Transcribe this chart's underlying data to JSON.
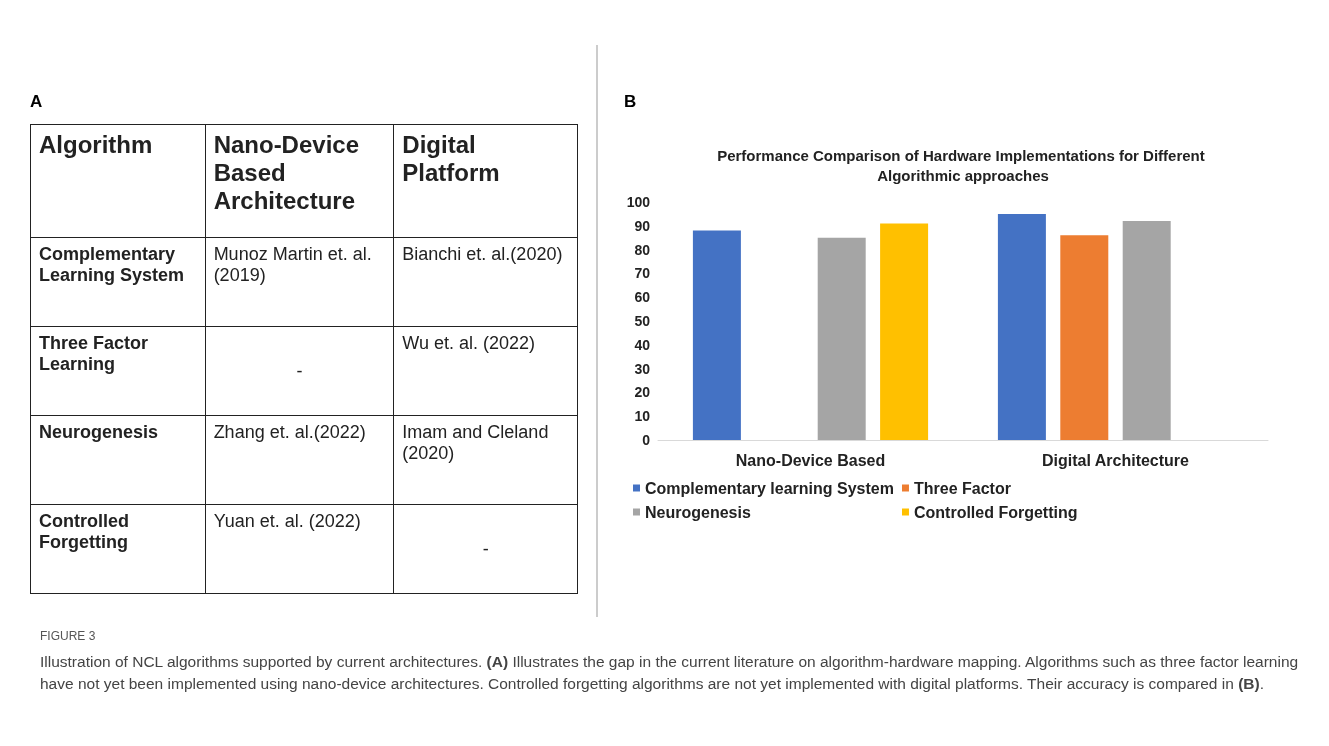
{
  "chart_data": [
    {
      "type": "other",
      "title": "A",
      "annotations": [
        "Algorithm",
        "Nano-Device Based Architecture",
        "Digital Platform",
        "Complementary Learning System",
        "Munoz Martin et. al.(2019)",
        "Bianchi et. al.(2020)",
        "Three Factor Learning",
        "-",
        "Wu et. al. (2022)",
        "Neurogenesis",
        "Zhang et. al.(2022)",
        "Imam and Cleland (2020)",
        "Controlled Forgetting",
        "Yuan et. al. (2022)",
        "-"
      ]
    },
    {
      "type": "bar",
      "title": "Performance Comparison of Hardware Implementations for Different Algorithmic approaches",
      "categories": [
        "Nano-Device Based",
        "Digital Architecture"
      ],
      "series": [
        {
          "name": "Complementary learning System",
          "color": "#4472c4",
          "values": [
            88,
            95
          ]
        },
        {
          "name": "Three Factor",
          "color": "#ed7d31",
          "values": [
            null,
            86
          ]
        },
        {
          "name": "Neurogenesis",
          "color": "#a5a5a5",
          "values": [
            85,
            92
          ]
        },
        {
          "name": "Controlled Forgetting",
          "color": "#ffc000",
          "values": [
            91,
            null
          ]
        }
      ],
      "ylim": [
        0,
        100
      ],
      "yticks": [
        0,
        10,
        20,
        30,
        40,
        50,
        60,
        70,
        80,
        90,
        100
      ],
      "grid": false,
      "legend": "bottom",
      "annotations": [
        "B",
        "FIGURE 3",
        "Illustration of NCL algorithms supported by current architectures. (A) Illustrates the gap in the current literature on algorithm-hardware mapping. Algorithms such as three factor learning have not yet been implemented using nano-device architectures. Controlled forgetting algorithms are not yet implemented with digital platforms. Their accuracy is compared in (B)."
      ]
    }
  ]
}
